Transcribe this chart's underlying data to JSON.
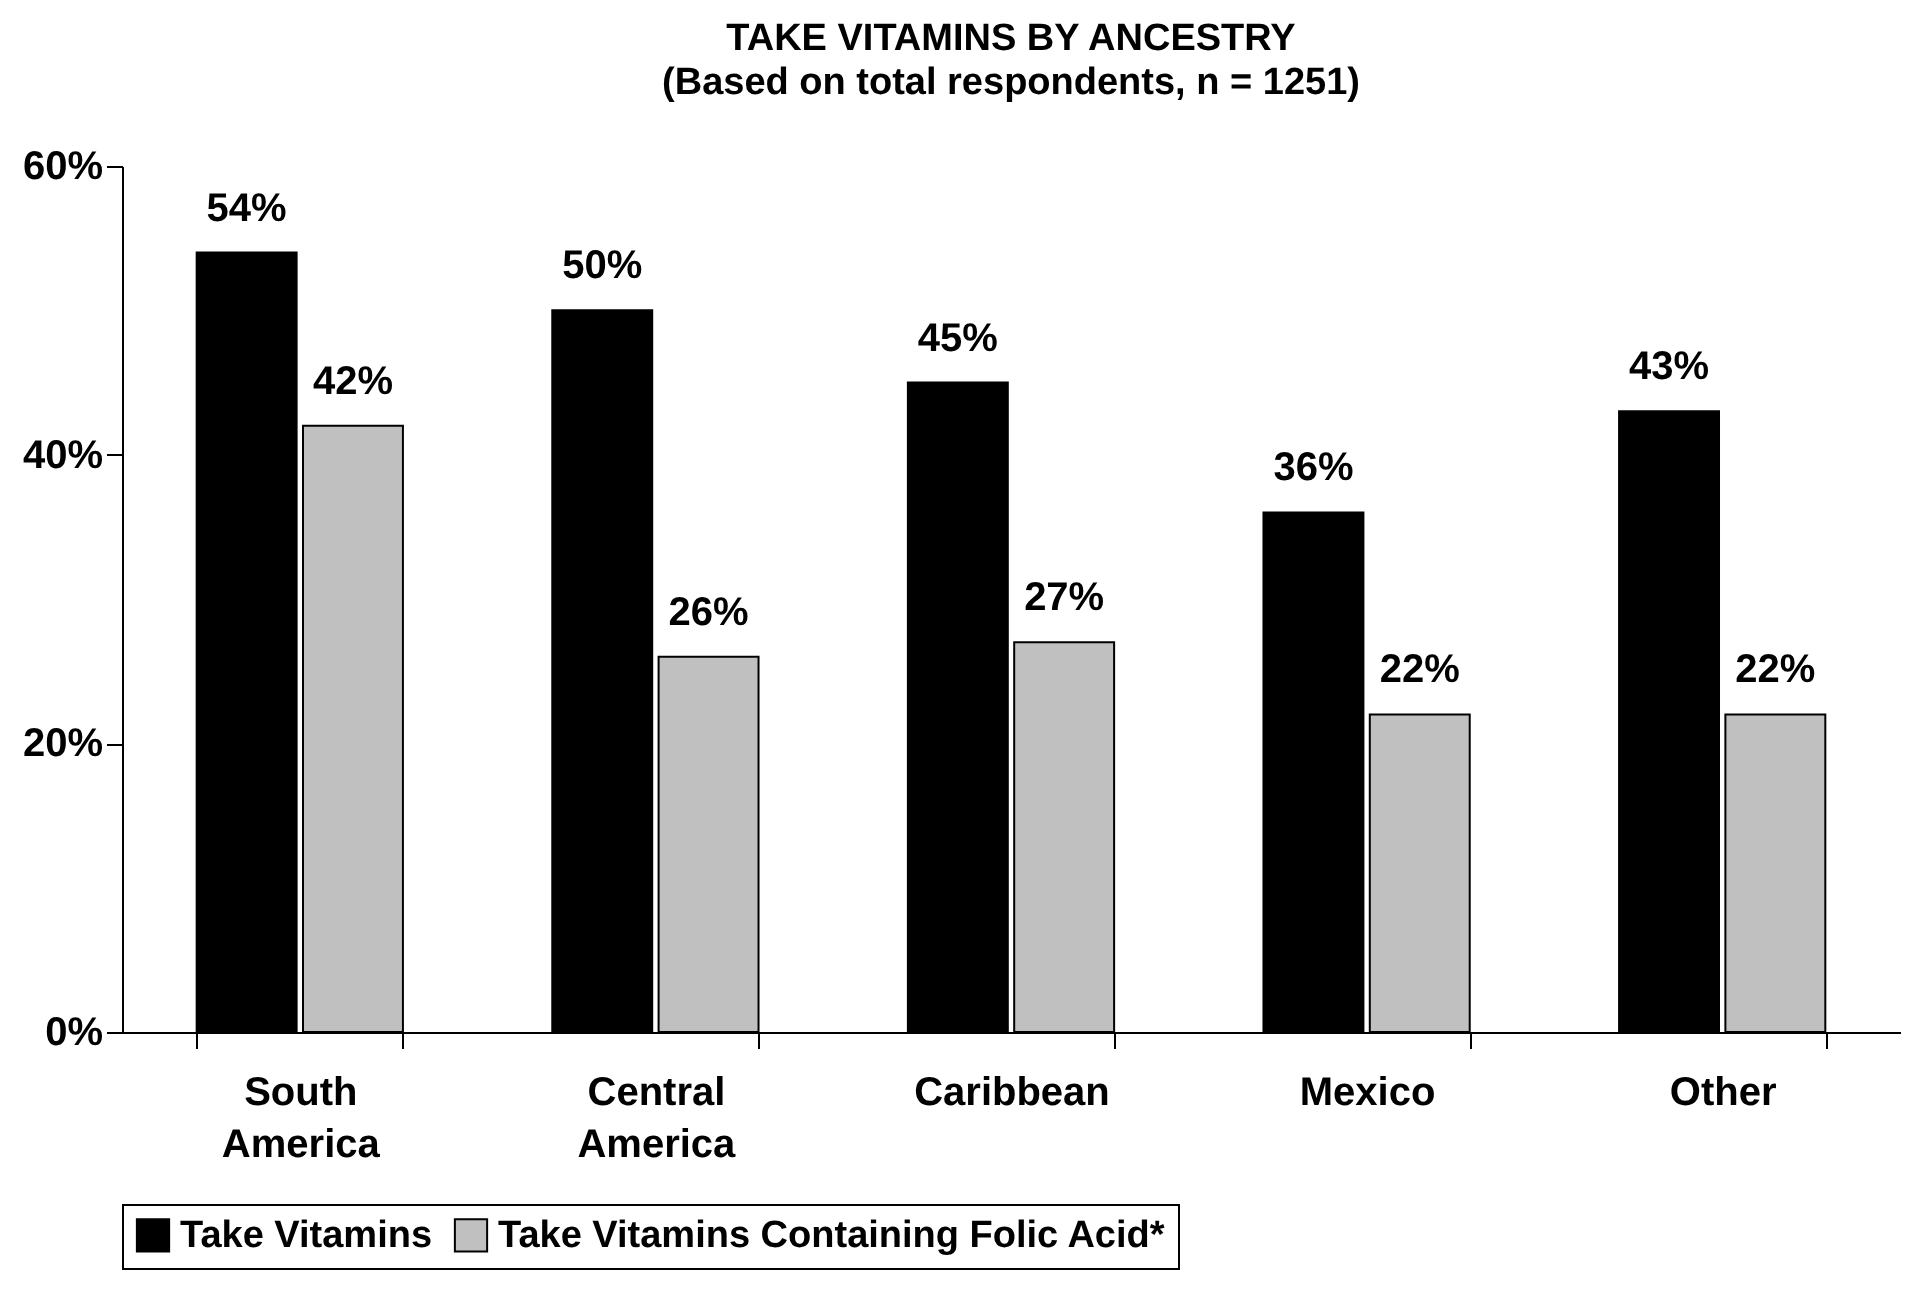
{
  "chart_data": {
    "type": "bar",
    "title": "TAKE VITAMINS BY ANCESTRY",
    "subtitle": "(Based on total respondents, n = 1251)",
    "categories": [
      "South America",
      "Central America",
      "Caribbean",
      "Mexico",
      "Other"
    ],
    "series": [
      {
        "name": "Take Vitamins",
        "color": "#000000",
        "values": [
          54,
          50,
          45,
          36,
          43
        ],
        "value_labels": [
          "54%",
          "50%",
          "45%",
          "36%",
          "43%"
        ]
      },
      {
        "name": "Take Vitamins Containing Folic Acid*",
        "color": "#c0c0c0",
        "values": [
          42,
          26,
          27,
          22,
          22
        ],
        "value_labels": [
          "42%",
          "26%",
          "27%",
          "22%",
          "22%"
        ]
      }
    ],
    "ylim": [
      0,
      60
    ],
    "yticks": [
      {
        "value": 0,
        "label": "0%"
      },
      {
        "value": 20,
        "label": "20%"
      },
      {
        "value": 40,
        "label": "40%"
      },
      {
        "value": 60,
        "label": "60%"
      }
    ],
    "grid": false,
    "legend": "bottom"
  }
}
